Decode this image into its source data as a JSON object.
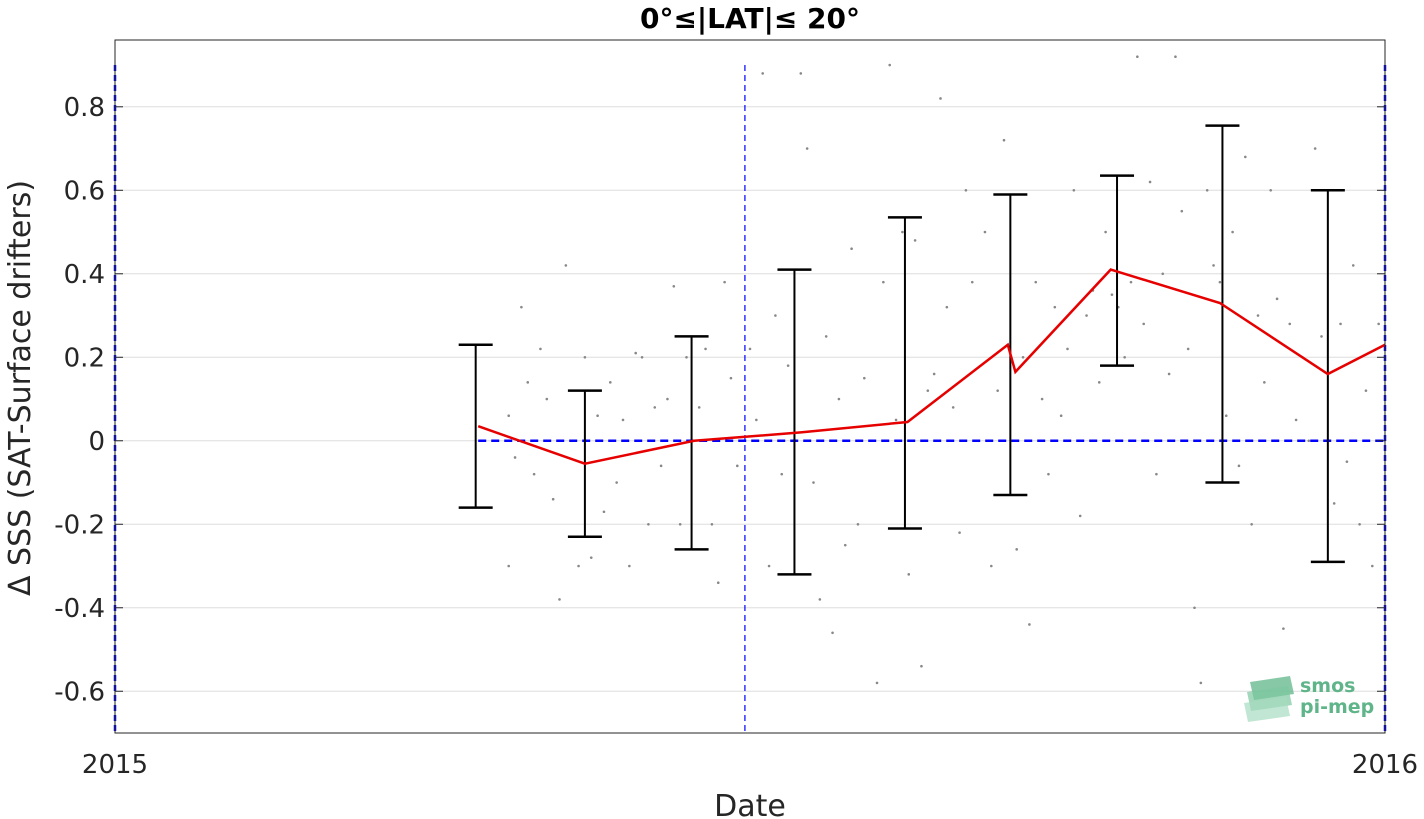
{
  "chart_data": {
    "type": "line",
    "title": "0°≤|LAT|≤ 20°",
    "xlabel": "Date",
    "ylabel": "Δ SSS (SAT-Surface drifters)",
    "xlim": [
      2015.0,
      2016.0
    ],
    "ylim": [
      -0.7,
      0.96
    ],
    "x_ticks": [
      2015,
      2016
    ],
    "x_tick_labels": [
      "2015",
      "2016"
    ],
    "y_ticks": [
      -0.6,
      -0.4,
      -0.2,
      0,
      0.2,
      0.4,
      0.6,
      0.8
    ],
    "y_tick_labels": [
      "-0.6",
      "-0.4",
      "-0.2",
      "0",
      "0.2",
      "0.4",
      "0.6",
      "0.8"
    ],
    "grid": "horizontal",
    "series": [
      {
        "type": "line",
        "color": "#e60000",
        "x": [
          2015.286,
          2015.37,
          2015.456,
          2015.54,
          2015.624,
          2015.709,
          2015.703,
          2015.784,
          2015.87,
          2015.955,
          2016.0
        ],
        "y": [
          0.035,
          -0.055,
          0.0,
          0.02,
          0.045,
          0.165,
          0.23,
          0.41,
          0.33,
          0.16,
          0.23
        ]
      }
    ],
    "error_bars": {
      "color": "#000000",
      "x": [
        2015.284,
        2015.37,
        2015.454,
        2015.535,
        2015.622,
        2015.705,
        2015.789,
        2015.872,
        2015.955
      ],
      "low": [
        -0.16,
        -0.23,
        -0.26,
        -0.32,
        -0.21,
        -0.13,
        0.18,
        -0.1,
        -0.29
      ],
      "high": [
        0.23,
        0.12,
        0.25,
        0.41,
        0.535,
        0.59,
        0.635,
        0.755,
        0.6
      ]
    },
    "reference_lines": [
      {
        "orientation": "horizontal",
        "y": 0,
        "x_range": [
          2015.286,
          2016.0
        ],
        "color": "#0000ff",
        "style": "dashed"
      },
      {
        "orientation": "vertical",
        "x": 2015.496,
        "color": "#0000ff",
        "style": "dashed"
      },
      {
        "orientation": "vertical",
        "x": 2015.0,
        "color": "#0000ff",
        "style": "dashed"
      },
      {
        "orientation": "vertical",
        "x": 2016.0,
        "color": "#0000ff",
        "style": "dashed"
      }
    ],
    "scatter": {
      "color": "#888888",
      "points": [
        [
          2015.31,
          0.06
        ],
        [
          2015.31,
          -0.3
        ],
        [
          2015.315,
          -0.04
        ],
        [
          2015.32,
          0.32
        ],
        [
          2015.325,
          0.14
        ],
        [
          2015.33,
          -0.08
        ],
        [
          2015.335,
          0.22
        ],
        [
          2015.34,
          0.1
        ],
        [
          2015.345,
          -0.14
        ],
        [
          2015.35,
          -0.38
        ],
        [
          2015.355,
          0.42
        ],
        [
          2015.36,
          0.0
        ],
        [
          2015.365,
          -0.3
        ],
        [
          2015.37,
          0.2
        ],
        [
          2015.375,
          -0.28
        ],
        [
          2015.38,
          0.06
        ],
        [
          2015.385,
          -0.17
        ],
        [
          2015.39,
          0.14
        ],
        [
          2015.395,
          -0.1
        ],
        [
          2015.4,
          0.05
        ],
        [
          2015.405,
          -0.3
        ],
        [
          2015.41,
          0.21
        ],
        [
          2015.415,
          0.2
        ],
        [
          2015.42,
          -0.2
        ],
        [
          2015.425,
          0.08
        ],
        [
          2015.43,
          -0.06
        ],
        [
          2015.435,
          0.1
        ],
        [
          2015.44,
          0.37
        ],
        [
          2015.445,
          -0.2
        ],
        [
          2015.45,
          0.2
        ],
        [
          2015.46,
          0.08
        ],
        [
          2015.465,
          0.22
        ],
        [
          2015.47,
          -0.2
        ],
        [
          2015.475,
          -0.34
        ],
        [
          2015.48,
          0.38
        ],
        [
          2015.485,
          0.15
        ],
        [
          2015.49,
          -0.06
        ],
        [
          2015.5,
          0.22
        ],
        [
          2015.505,
          0.05
        ],
        [
          2015.51,
          0.88
        ],
        [
          2015.515,
          -0.3
        ],
        [
          2015.52,
          0.3
        ],
        [
          2015.525,
          -0.08
        ],
        [
          2015.53,
          0.18
        ],
        [
          2015.54,
          0.88
        ],
        [
          2015.545,
          0.7
        ],
        [
          2015.55,
          -0.1
        ],
        [
          2015.555,
          -0.38
        ],
        [
          2015.56,
          0.25
        ],
        [
          2015.565,
          -0.46
        ],
        [
          2015.57,
          0.1
        ],
        [
          2015.575,
          -0.25
        ],
        [
          2015.58,
          0.46
        ],
        [
          2015.585,
          -0.2
        ],
        [
          2015.59,
          0.15
        ],
        [
          2015.6,
          -0.58
        ],
        [
          2015.605,
          0.38
        ],
        [
          2015.61,
          0.9
        ],
        [
          2015.615,
          0.05
        ],
        [
          2015.62,
          0.5
        ],
        [
          2015.625,
          -0.32
        ],
        [
          2015.63,
          0.48
        ],
        [
          2015.635,
          -0.54
        ],
        [
          2015.64,
          0.12
        ],
        [
          2015.645,
          0.16
        ],
        [
          2015.65,
          0.82
        ],
        [
          2015.655,
          0.32
        ],
        [
          2015.66,
          0.08
        ],
        [
          2015.665,
          -0.22
        ],
        [
          2015.67,
          0.6
        ],
        [
          2015.675,
          0.38
        ],
        [
          2015.68,
          0.0
        ],
        [
          2015.685,
          0.5
        ],
        [
          2015.69,
          -0.3
        ],
        [
          2015.695,
          0.12
        ],
        [
          2015.7,
          0.72
        ],
        [
          2015.71,
          -0.26
        ],
        [
          2015.715,
          0.2
        ],
        [
          2015.72,
          -0.44
        ],
        [
          2015.725,
          0.38
        ],
        [
          2015.73,
          0.1
        ],
        [
          2015.735,
          -0.08
        ],
        [
          2015.74,
          0.32
        ],
        [
          2015.745,
          0.06
        ],
        [
          2015.75,
          0.22
        ],
        [
          2015.755,
          0.6
        ],
        [
          2015.76,
          -0.18
        ],
        [
          2015.765,
          0.3
        ],
        [
          2015.77,
          0.36
        ],
        [
          2015.775,
          0.14
        ],
        [
          2015.78,
          0.5
        ],
        [
          2015.785,
          0.35
        ],
        [
          2015.79,
          0.32
        ],
        [
          2015.795,
          0.2
        ],
        [
          2015.8,
          0.38
        ],
        [
          2015.805,
          0.92
        ],
        [
          2015.81,
          0.28
        ],
        [
          2015.815,
          0.62
        ],
        [
          2015.82,
          -0.08
        ],
        [
          2015.825,
          0.4
        ],
        [
          2015.83,
          0.16
        ],
        [
          2015.835,
          0.92
        ],
        [
          2015.84,
          0.55
        ],
        [
          2015.845,
          0.22
        ],
        [
          2015.85,
          -0.4
        ],
        [
          2015.855,
          -0.58
        ],
        [
          2015.86,
          0.6
        ],
        [
          2015.865,
          0.42
        ],
        [
          2015.87,
          0.38
        ],
        [
          2015.875,
          0.06
        ],
        [
          2015.88,
          0.5
        ],
        [
          2015.885,
          -0.06
        ],
        [
          2015.89,
          0.68
        ],
        [
          2015.895,
          -0.2
        ],
        [
          2015.9,
          0.3
        ],
        [
          2015.905,
          0.14
        ],
        [
          2015.91,
          0.6
        ],
        [
          2015.915,
          0.34
        ],
        [
          2015.92,
          -0.45
        ],
        [
          2015.925,
          0.28
        ],
        [
          2015.93,
          0.05
        ],
        [
          2015.935,
          0.2
        ],
        [
          2015.94,
          0.0
        ],
        [
          2015.945,
          0.7
        ],
        [
          2015.95,
          0.25
        ],
        [
          2015.96,
          -0.15
        ],
        [
          2015.965,
          0.28
        ],
        [
          2015.97,
          -0.05
        ],
        [
          2015.975,
          0.42
        ],
        [
          2015.98,
          -0.2
        ],
        [
          2015.985,
          0.12
        ],
        [
          2015.99,
          -0.3
        ],
        [
          2015.995,
          0.28
        ]
      ]
    }
  },
  "logo": {
    "line1": "smos",
    "line2": "pi-mep",
    "color": "#5fb589"
  }
}
